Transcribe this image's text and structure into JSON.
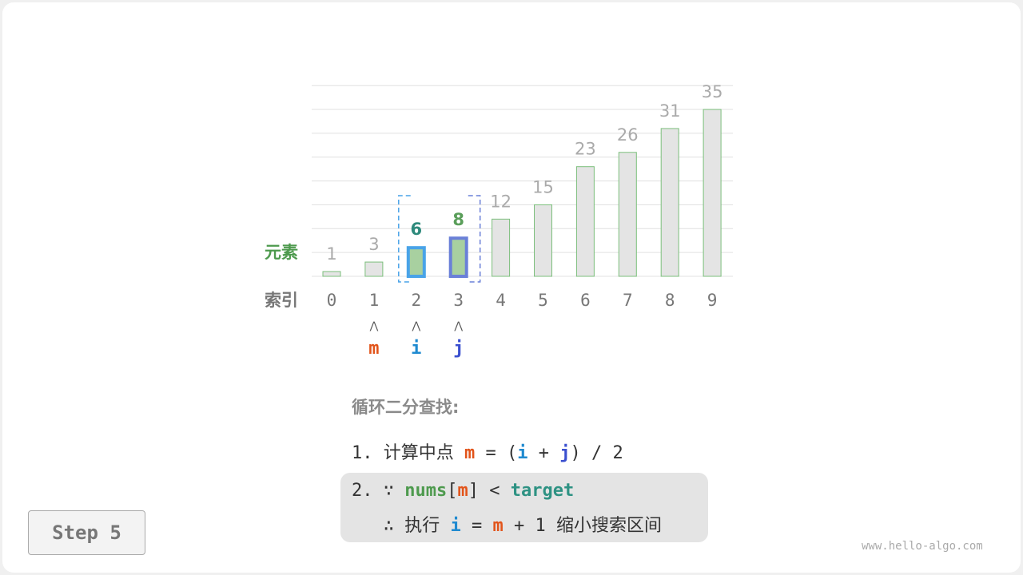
{
  "diagram": {
    "row_labels": {
      "elements": "元素",
      "indices": "索引"
    },
    "nums": [
      1,
      3,
      6,
      8,
      12,
      15,
      23,
      26,
      31,
      35
    ],
    "indices": [
      "0",
      "1",
      "2",
      "3",
      "4",
      "5",
      "6",
      "7",
      "8",
      "9"
    ],
    "pointers": [
      {
        "name": "m",
        "index": 1
      },
      {
        "name": "i",
        "index": 2
      },
      {
        "name": "j",
        "index": 3
      }
    ],
    "search_interval": [
      2,
      3
    ],
    "colors": {
      "m": "#e2541a",
      "i": "#1f8ad0",
      "j": "#3a4fcf",
      "element_label": "#4e9a4e",
      "bar_fill": "#e4e4e4",
      "bar_active_fill": "#a8d0a0",
      "bar_stroke": "#7bbf7b"
    }
  },
  "explanation": {
    "title": "循环二分查找:",
    "step1": {
      "prefix": "1. 计算中点 ",
      "m": "m",
      "eq": " = (",
      "i": "i",
      "plus": " + ",
      "j": "j",
      "tail": ") / 2"
    },
    "step2": {
      "prefix": "2. ∵ ",
      "nums": "nums",
      "lb": "[",
      "m": "m",
      "rb": "]",
      "lt": " < ",
      "target": "target",
      "l2prefix": "   ∴ 执行 ",
      "i": "i",
      "eq": " = ",
      "m2": "m",
      "tail": " + 1 缩小搜索区间"
    }
  },
  "step_label": "Step 5",
  "watermark": "www.hello-algo.com"
}
